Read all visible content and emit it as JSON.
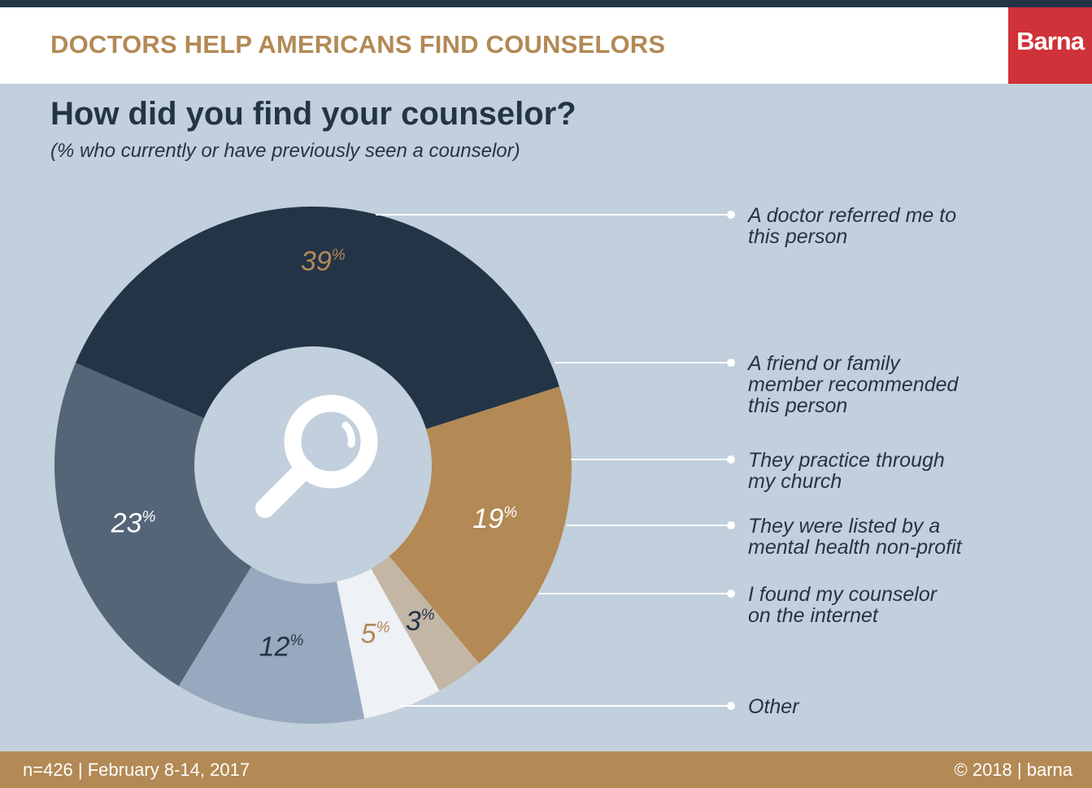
{
  "header": {
    "title": "DOCTORS HELP AMERICANS FIND COUNSELORS",
    "logo_text": "Barna"
  },
  "chart_data": {
    "type": "pie",
    "title": "How did you find your counselor?",
    "subtitle": "(% who currently or have previously seen a counselor)",
    "categories": [
      "A doctor referred me to this person",
      "A friend or family member recommended this person",
      "They practice through my church",
      "They were listed by a mental health non-profit",
      "I found my counselor on the internet",
      "Other"
    ],
    "values": [
      39,
      19,
      3,
      5,
      12,
      23
    ],
    "value_unit": "%",
    "donut": true,
    "center_icon": "magnifying-glass-icon",
    "legend_placement": "right",
    "colors": [
      "#243447",
      "#b38955",
      "#c3b6a5",
      "#eef1f5",
      "#97a9bf",
      "#546577"
    ],
    "label_colors": [
      "#b38955",
      "#ffffff",
      "#243447",
      "#b38955",
      "#243447",
      "#ffffff"
    ]
  },
  "footer": {
    "left": "n=426 | February 8-14, 2017",
    "right": "© 2018 | barna"
  }
}
